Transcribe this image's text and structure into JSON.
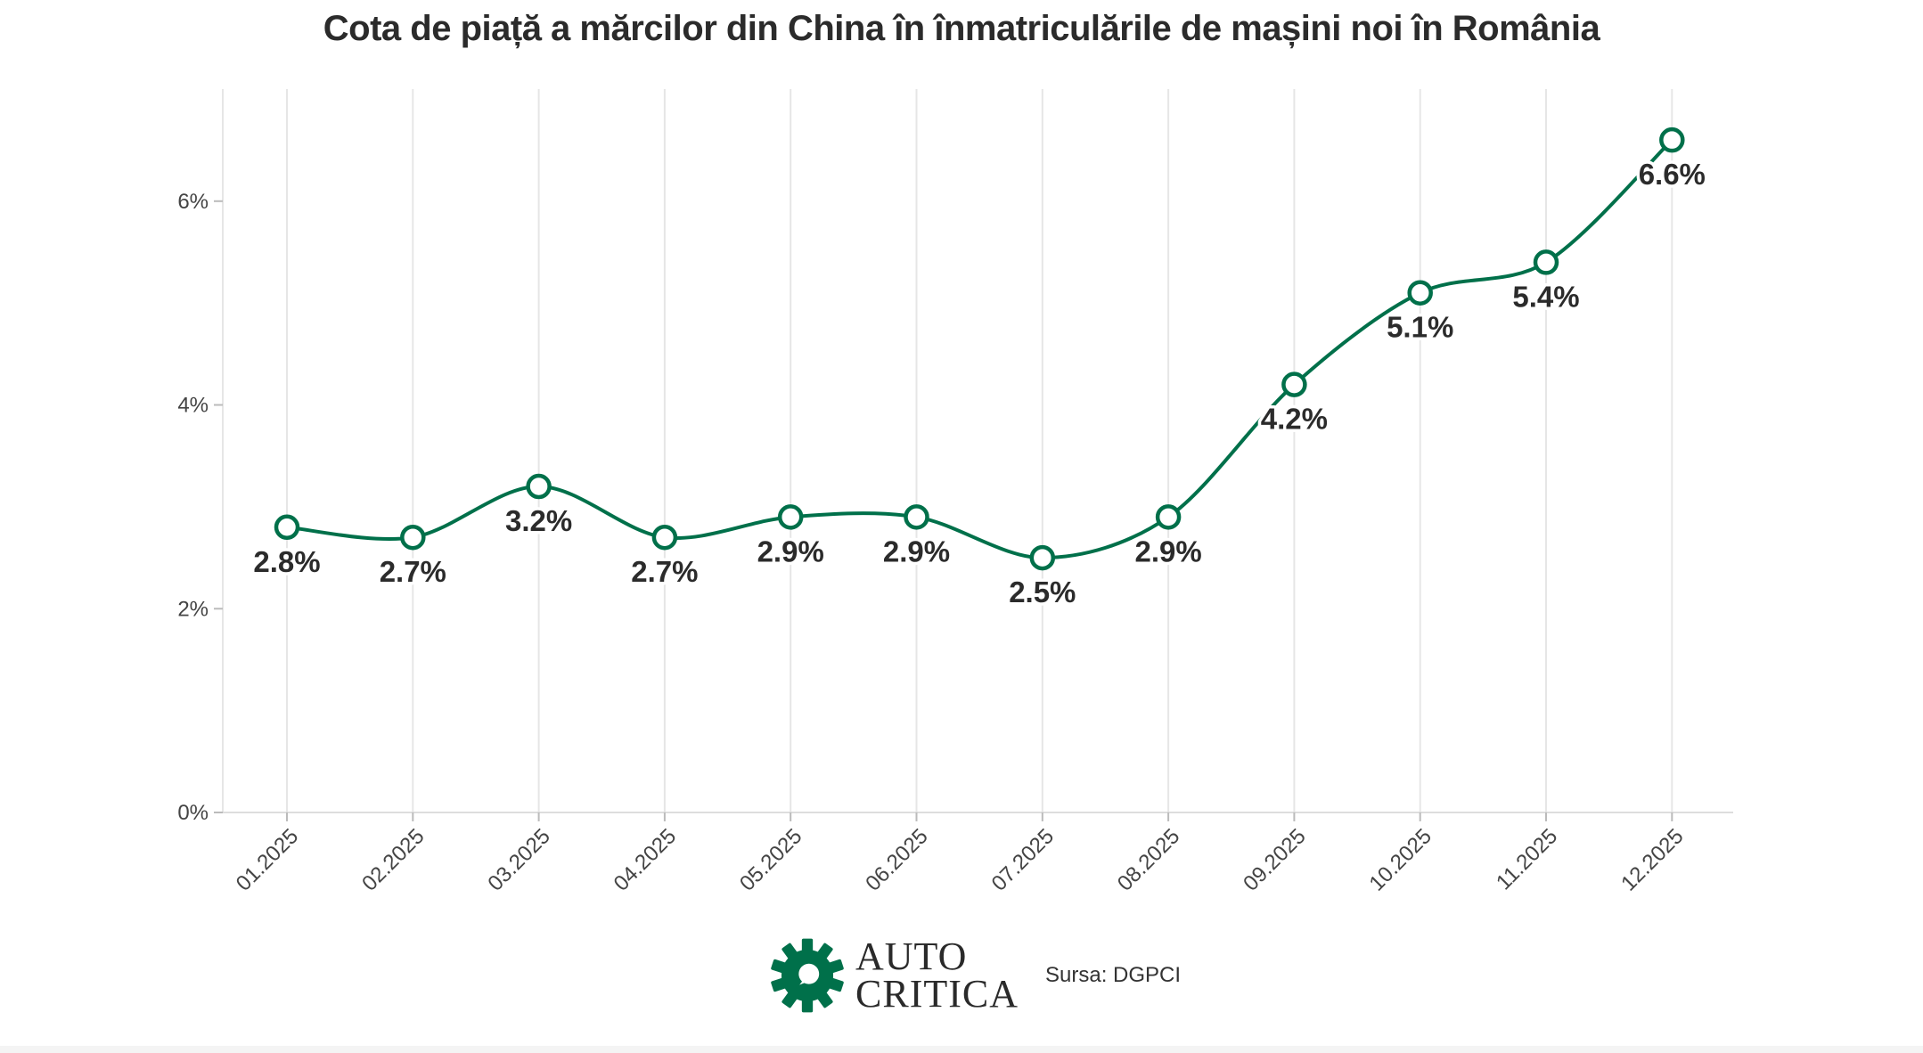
{
  "chart_data": {
    "type": "line",
    "title": "Cota de piață a mărcilor din China în înmatriculările de mașini noi în România",
    "categories": [
      "01.2025",
      "02.2025",
      "03.2025",
      "04.2025",
      "05.2025",
      "06.2025",
      "07.2025",
      "08.2025",
      "09.2025",
      "10.2025",
      "11.2025",
      "12.2025"
    ],
    "series": [
      {
        "values": [
          2.8,
          2.7,
          3.2,
          2.7,
          2.9,
          2.9,
          2.5,
          2.9,
          4.2,
          5.1,
          5.4,
          6.6
        ],
        "labels": [
          "2.8%",
          "2.7%",
          "3.2%",
          "2.7%",
          "2.9%",
          "2.9%",
          "2.5%",
          "2.9%",
          "4.2%",
          "5.1%",
          "5.4%",
          "6.6%"
        ]
      }
    ],
    "y_ticks": [
      0,
      2,
      4,
      6
    ],
    "y_tick_labels": [
      "0%",
      "2%",
      "4%",
      "6%"
    ],
    "ylim": [
      0,
      7.1
    ],
    "xlabel": "",
    "ylabel": "",
    "grid": "vertical",
    "colors": {
      "line": "#00704a",
      "marker_fill": "#ffffff",
      "grid": "#e6e6e6",
      "axis": "#dddddd"
    }
  },
  "footer": {
    "logo_line1": "AUTO",
    "logo_line2": "CRITICA",
    "logo_color": "#00704a",
    "source": "Sursa: DGPCI"
  }
}
